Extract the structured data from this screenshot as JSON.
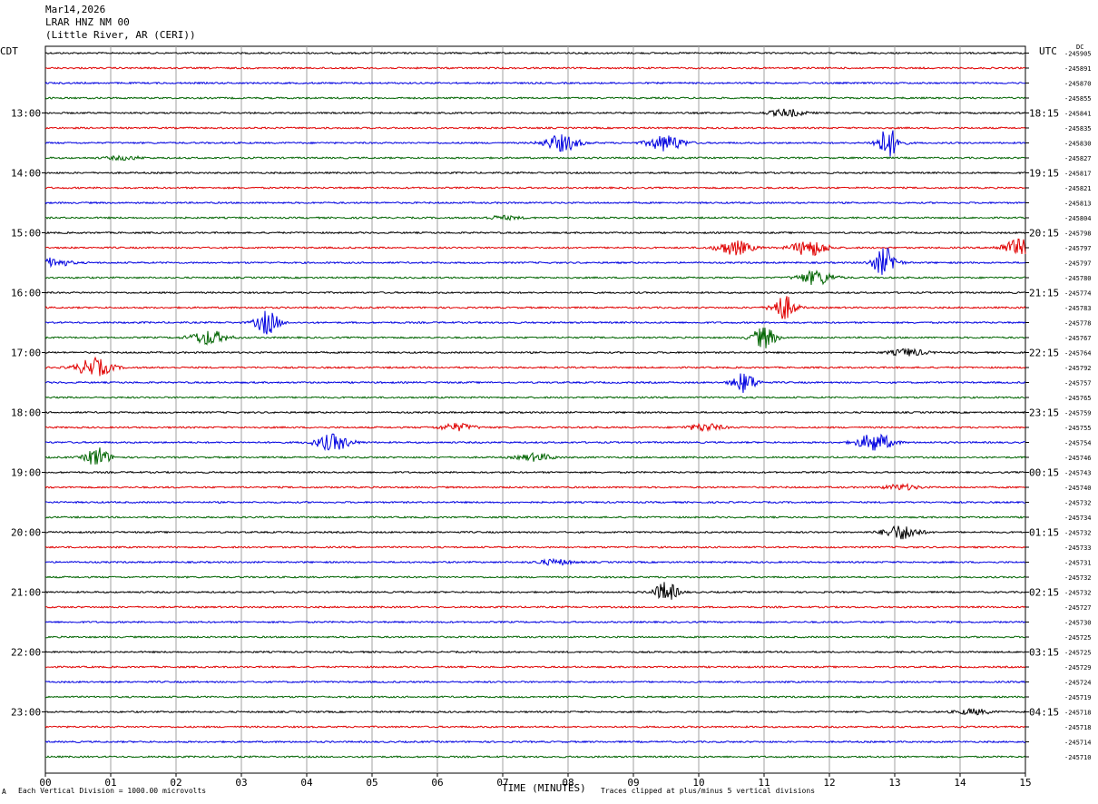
{
  "header": {
    "date": "Mar14,2026",
    "station": "LRAR HNZ NM 00",
    "location": "(Little River, AR (CERI))"
  },
  "left_tz": "CDT",
  "right_tz": "UTC",
  "dc_label": "DC",
  "footer": {
    "scale_note": "Each Vertical Division = 1000.00 microvolts",
    "clip_note": "Traces clipped at plus/minus 5 vertical divisions",
    "mark": "A"
  },
  "colors": {
    "trace_cycle": [
      "#000000",
      "#e00000",
      "#0000e0",
      "#006400"
    ],
    "grid": "#a0a0a0"
  },
  "chart_data": {
    "type": "line",
    "title": "",
    "xlabel": "TIME (MINUTES)",
    "ylabel": "",
    "xlim": [
      0,
      15
    ],
    "x_ticks": [
      "00",
      "01",
      "02",
      "03",
      "04",
      "05",
      "06",
      "07",
      "08",
      "09",
      "10",
      "11",
      "12",
      "13",
      "14",
      "15"
    ],
    "left_hour_labels": [
      {
        "row": 4,
        "text": "13:00"
      },
      {
        "row": 8,
        "text": "14:00"
      },
      {
        "row": 12,
        "text": "15:00"
      },
      {
        "row": 16,
        "text": "16:00"
      },
      {
        "row": 20,
        "text": "17:00"
      },
      {
        "row": 24,
        "text": "18:00"
      },
      {
        "row": 28,
        "text": "19:00"
      },
      {
        "row": 32,
        "text": "20:00"
      },
      {
        "row": 36,
        "text": "21:00"
      },
      {
        "row": 40,
        "text": "22:00"
      },
      {
        "row": 44,
        "text": "23:00"
      }
    ],
    "right_hour_labels": [
      {
        "row": 4,
        "text": "18:15"
      },
      {
        "row": 8,
        "text": "19:15"
      },
      {
        "row": 12,
        "text": "20:15"
      },
      {
        "row": 16,
        "text": "21:15"
      },
      {
        "row": 20,
        "text": "22:15"
      },
      {
        "row": 24,
        "text": "23:15"
      },
      {
        "row": 28,
        "text": "00:15"
      },
      {
        "row": 32,
        "text": "01:15"
      },
      {
        "row": 36,
        "text": "02:15"
      },
      {
        "row": 40,
        "text": "03:15"
      },
      {
        "row": 44,
        "text": "04:15"
      }
    ],
    "dc_offsets": [
      "-245905",
      "-245891",
      "-245870",
      "-245855",
      "-245841",
      "-245835",
      "-245830",
      "-245827",
      "-245817",
      "-245821",
      "-245813",
      "-245804",
      "-245798",
      "-245797",
      "-245797",
      "-245780",
      "-245774",
      "-245783",
      "-245778",
      "-245767",
      "-245764",
      "-245792",
      "-245757",
      "-245765",
      "-245759",
      "-245755",
      "-245754",
      "-245746",
      "-245743",
      "-245740",
      "-245732",
      "-245734",
      "-245732",
      "-245733",
      "-245731",
      "-245732",
      "-245732",
      "-245727",
      "-245730",
      "-245725",
      "-245725",
      "-245729",
      "-245724",
      "-245719",
      "-245718",
      "-245718",
      "-245714",
      "-245710"
    ],
    "events": [
      {
        "row": 4,
        "minute": 11.35,
        "amp": 4
      },
      {
        "row": 6,
        "minute": 7.9,
        "amp": 9
      },
      {
        "row": 6,
        "minute": 9.5,
        "amp": 9
      },
      {
        "row": 6,
        "minute": 12.9,
        "amp": 16
      },
      {
        "row": 7,
        "minute": 1.2,
        "amp": 2
      },
      {
        "row": 11,
        "minute": 7.0,
        "amp": 2
      },
      {
        "row": 13,
        "minute": 10.55,
        "amp": 8
      },
      {
        "row": 13,
        "minute": 11.7,
        "amp": 9
      },
      {
        "row": 13,
        "minute": 14.9,
        "amp": 9
      },
      {
        "row": 14,
        "minute": 0.1,
        "amp": 5
      },
      {
        "row": 14,
        "minute": 12.85,
        "amp": 16
      },
      {
        "row": 15,
        "minute": 11.8,
        "amp": 8
      },
      {
        "row": 17,
        "minute": 11.3,
        "amp": 14
      },
      {
        "row": 18,
        "minute": 3.4,
        "amp": 13
      },
      {
        "row": 19,
        "minute": 2.5,
        "amp": 8
      },
      {
        "row": 19,
        "minute": 11.0,
        "amp": 12
      },
      {
        "row": 20,
        "minute": 13.2,
        "amp": 4
      },
      {
        "row": 21,
        "minute": 0.75,
        "amp": 10
      },
      {
        "row": 22,
        "minute": 10.7,
        "amp": 11
      },
      {
        "row": 25,
        "minute": 6.3,
        "amp": 4
      },
      {
        "row": 25,
        "minute": 10.1,
        "amp": 4
      },
      {
        "row": 26,
        "minute": 4.4,
        "amp": 9
      },
      {
        "row": 26,
        "minute": 12.7,
        "amp": 10
      },
      {
        "row": 27,
        "minute": 0.8,
        "amp": 11
      },
      {
        "row": 27,
        "minute": 7.5,
        "amp": 4
      },
      {
        "row": 29,
        "minute": 13.1,
        "amp": 3
      },
      {
        "row": 32,
        "minute": 13.1,
        "amp": 8
      },
      {
        "row": 34,
        "minute": 7.8,
        "amp": 3
      },
      {
        "row": 36,
        "minute": 9.5,
        "amp": 11
      },
      {
        "row": 44,
        "minute": 14.2,
        "amp": 3
      }
    ]
  }
}
